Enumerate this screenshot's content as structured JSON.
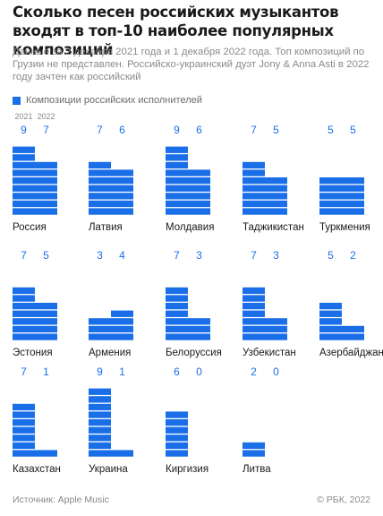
{
  "title": "Сколько песен российских музыкантов входят в топ-10 наиболее популярных композиций",
  "subtitle": "Данные за 2 декабря 2021 года и 1 декабря 2022 года. Топ композиций по Грузии не представлен. Российско-украинский дуэт Jony & Anna Asti в 2022 году зачтен как российский",
  "legend_label": "Композиции российских исполнителей",
  "source": "Источник: Apple Music",
  "copyright": "© РБК, 2022",
  "colors": {
    "bar": "#1a6fe8",
    "value_text": "#1a6fe8",
    "label_text": "#1a1a1a"
  },
  "chart_data": {
    "type": "bar",
    "layout": "small-multiples",
    "series_labels": [
      "2021",
      "2022"
    ],
    "max_value": 10,
    "countries": [
      {
        "name": "Россия",
        "values": [
          9,
          7
        ]
      },
      {
        "name": "Латвия",
        "values": [
          7,
          6
        ]
      },
      {
        "name": "Молдавия",
        "values": [
          9,
          6
        ]
      },
      {
        "name": "Таджикистан",
        "values": [
          7,
          5
        ]
      },
      {
        "name": "Туркмения",
        "values": [
          5,
          5
        ]
      },
      {
        "name": "Эстония",
        "values": [
          7,
          5
        ]
      },
      {
        "name": "Армения",
        "values": [
          3,
          4
        ]
      },
      {
        "name": "Белоруссия",
        "values": [
          7,
          3
        ]
      },
      {
        "name": "Узбекистан",
        "values": [
          7,
          3
        ]
      },
      {
        "name": "Азербайджан",
        "values": [
          5,
          2
        ]
      },
      {
        "name": "Казахстан",
        "values": [
          7,
          1
        ]
      },
      {
        "name": "Украина",
        "values": [
          9,
          1
        ]
      },
      {
        "name": "Киргизия",
        "values": [
          6,
          0
        ]
      },
      {
        "name": "Литва",
        "values": [
          2,
          0
        ]
      }
    ]
  }
}
